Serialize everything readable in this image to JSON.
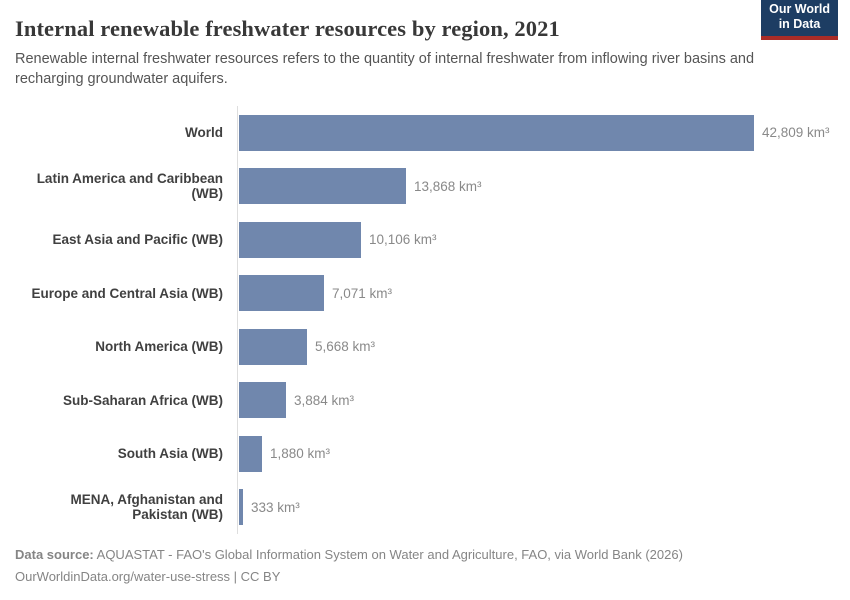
{
  "header": {
    "title": "Internal renewable freshwater resources by region, 2021",
    "subtitle": "Renewable internal freshwater resources refers to the quantity of internal freshwater from inflowing river basins and recharging groundwater aquifers.",
    "logo": {
      "line1": "Our World",
      "line2": "in Data",
      "background_color": "#1d3d63",
      "accent_color": "#a92c27"
    }
  },
  "chart_data": {
    "type": "bar",
    "orientation": "horizontal",
    "title": "Internal renewable freshwater resources by region, 2021",
    "unit": "km³",
    "categories": [
      "World",
      "Latin America and Caribbean (WB)",
      "East Asia and Pacific (WB)",
      "Europe and Central Asia (WB)",
      "North America (WB)",
      "Sub-Saharan Africa (WB)",
      "South Asia (WB)",
      "MENA, Afghanistan and Pakistan (WB)"
    ],
    "values": [
      42809,
      13868,
      10106,
      7071,
      5668,
      3884,
      1880,
      333
    ],
    "value_labels": [
      "42,809 km³",
      "13,868 km³",
      "10,106 km³",
      "7,071 km³",
      "5,668 km³",
      "3,884 km³",
      "1,880 km³",
      "333 km³"
    ],
    "xlim": [
      0,
      42809
    ],
    "bar_color": "#7087ad",
    "grid": false,
    "legend": "none"
  },
  "footer": {
    "source_label": "Data source:",
    "source_text": " AQUASTAT - FAO's Global Information System on Water and Agriculture, FAO, via World Bank (2026)",
    "link_text": "OurWorldinData.org/water-use-stress",
    "license_separator": " | ",
    "license_text": "CC BY"
  }
}
